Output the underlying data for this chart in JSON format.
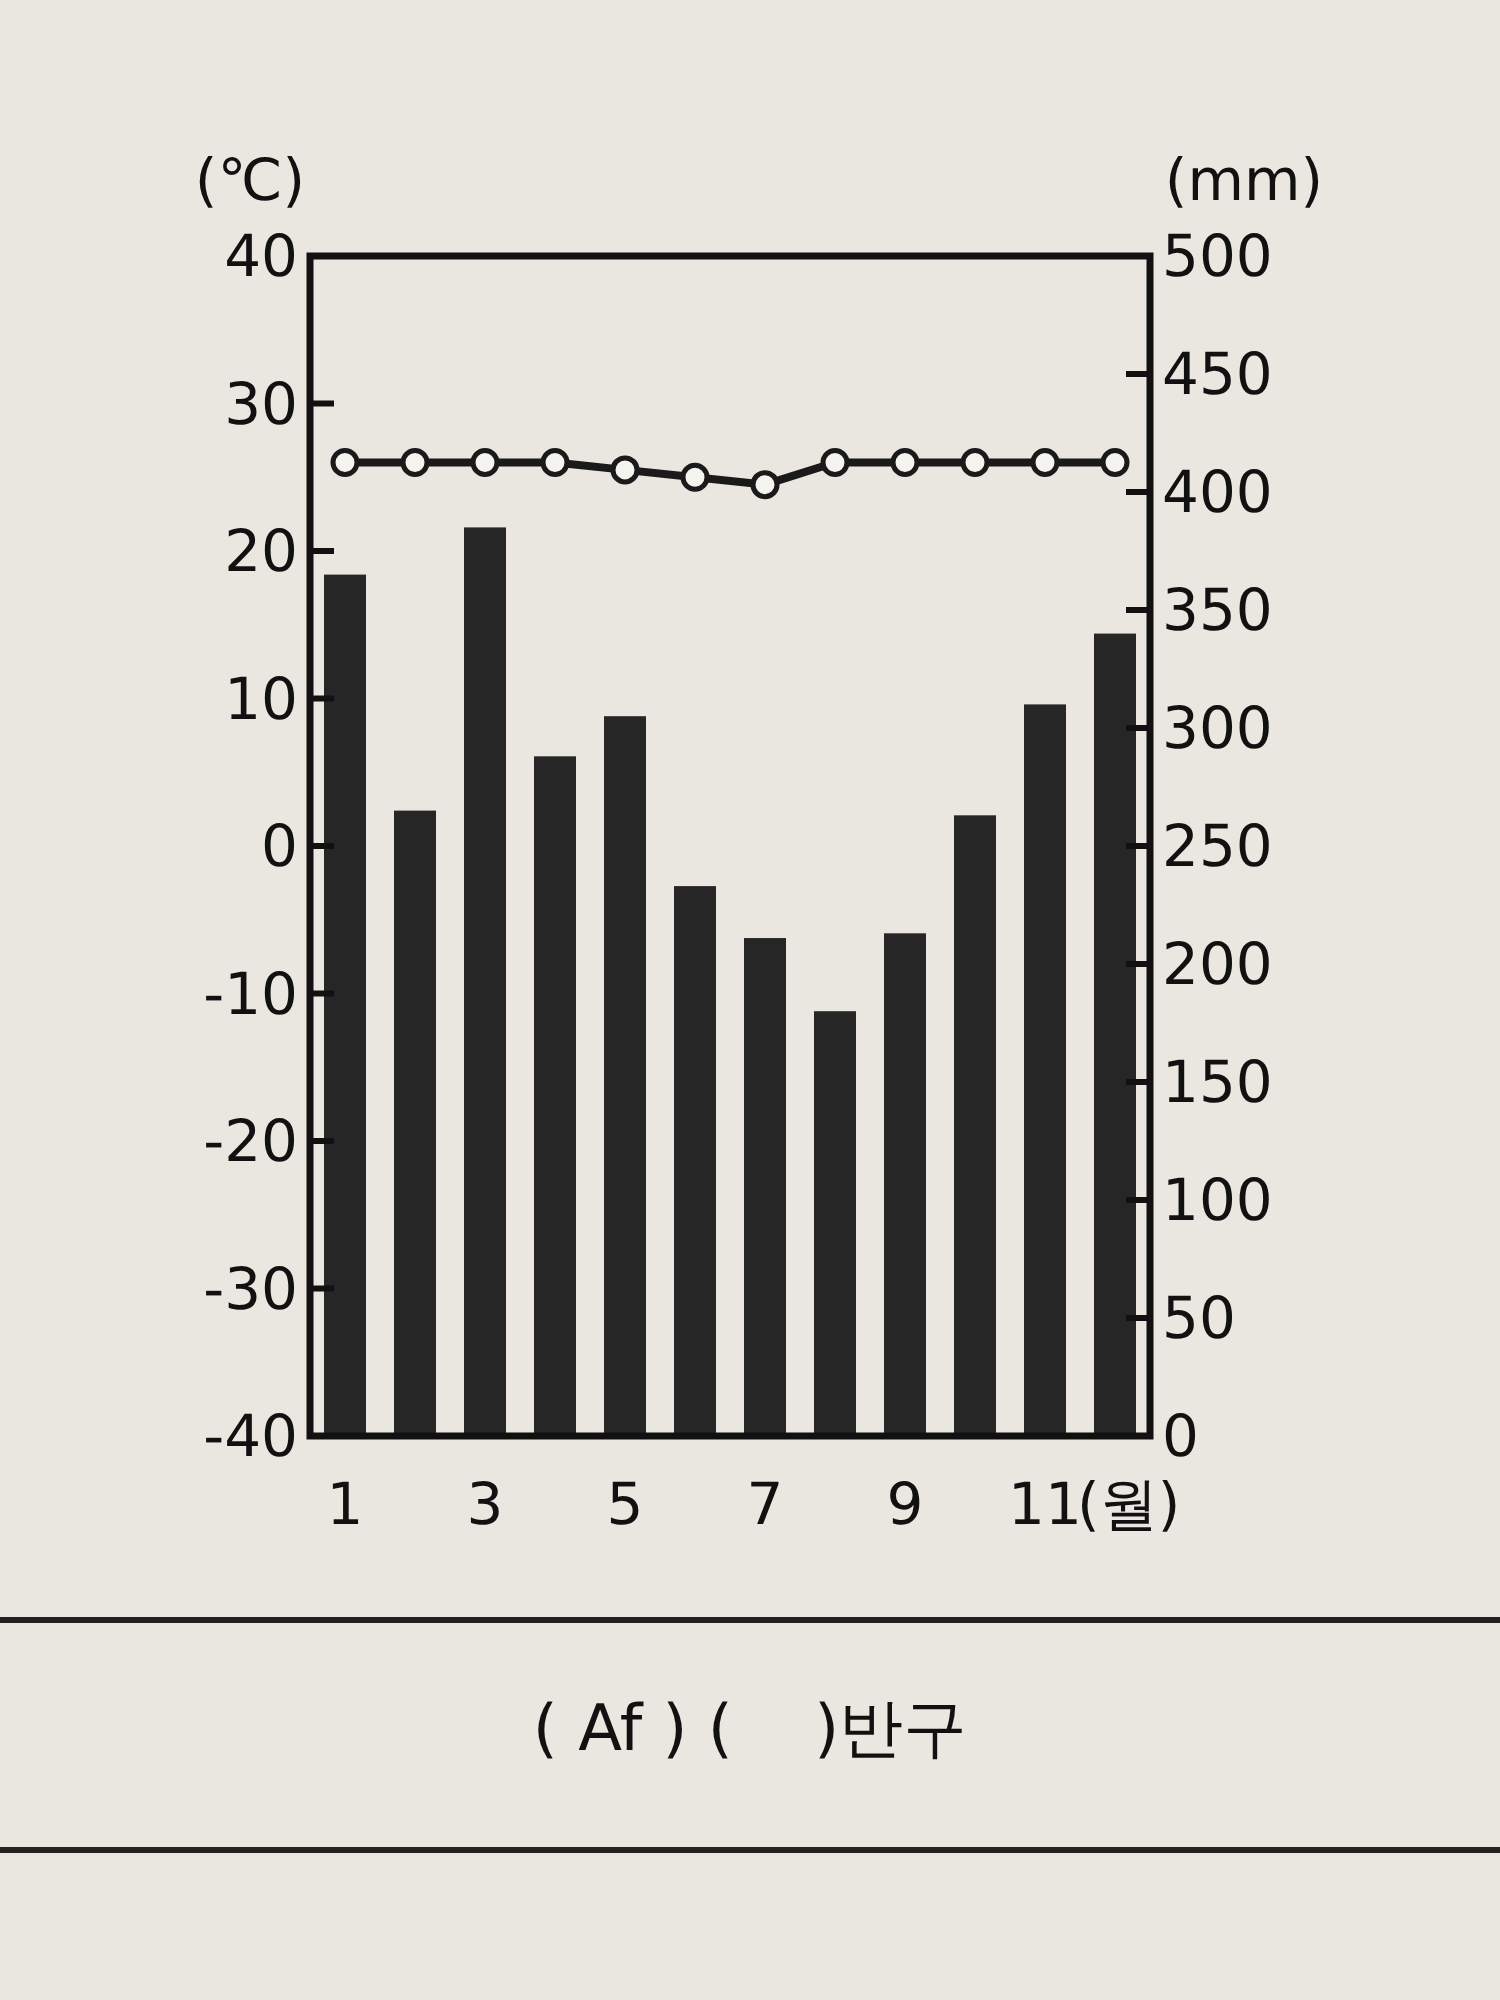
{
  "chart_data": {
    "type": "bar",
    "categories": [
      "1",
      null,
      "3",
      null,
      "5",
      null,
      "7",
      null,
      "9",
      null,
      "11",
      null
    ],
    "xlabel": "(월)",
    "ylabel": "(℃)",
    "y2label": "(mm)",
    "ylim": [
      -40,
      40
    ],
    "yticks": [
      -40,
      -30,
      -20,
      -10,
      0,
      10,
      20,
      30,
      40
    ],
    "y2lim": [
      0,
      500
    ],
    "y2ticks": [
      0,
      50,
      100,
      150,
      200,
      250,
      300,
      350,
      400,
      450,
      500
    ],
    "marker": "circle",
    "series": [
      {
        "axis": "y2",
        "color": "#262626",
        "values": [
          365,
          265,
          385,
          288,
          305,
          233,
          211,
          180,
          213,
          263,
          310,
          340
        ]
      },
      {
        "type": "line",
        "axis": "y",
        "color": "#1a1a1a",
        "values": [
          26,
          26,
          26,
          26,
          25.5,
          25,
          24.5,
          26,
          26,
          26,
          26,
          26
        ]
      }
    ],
    "annotations": [
      "( Af ) (    )반구"
    ]
  }
}
